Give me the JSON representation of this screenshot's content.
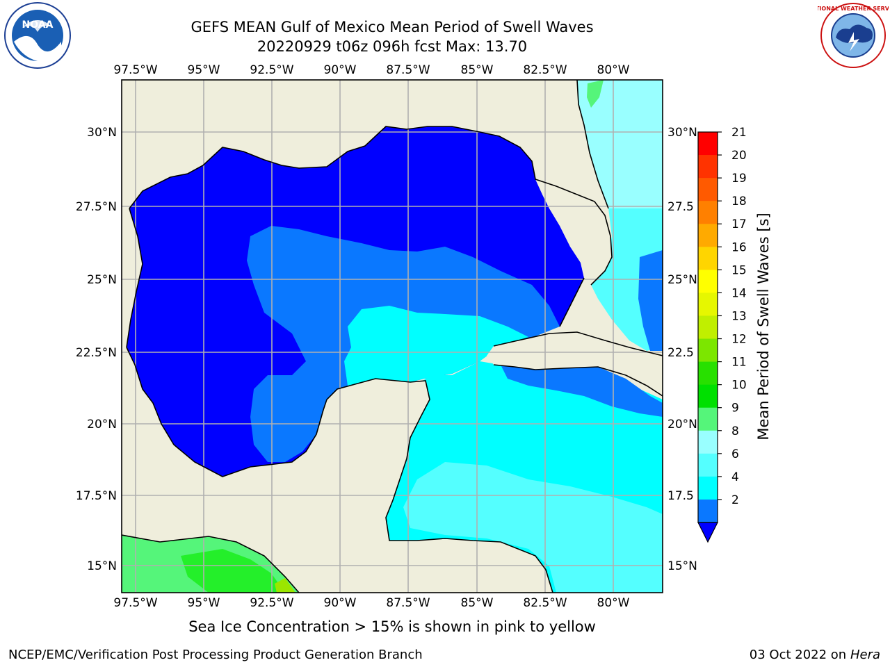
{
  "title": {
    "line1": "GEFS MEAN Gulf of Mexico Mean Period of Swell Waves",
    "line2": "20220929 t06z 096h fcst   Max: 13.70"
  },
  "map": {
    "lon_labels": [
      "97.5°W",
      "95°W",
      "92.5°W",
      "90°W",
      "87.5°W",
      "85°W",
      "82.5°W",
      "80°W"
    ],
    "lat_labels_left": [
      "30°N",
      "27.5°N",
      "25°N",
      "22.5°N",
      "20°N",
      "17.5°N",
      "15°N"
    ],
    "lat_labels_right": [
      "30°N",
      "27.5",
      "25°N",
      "22.5",
      "20°N",
      "17.5",
      "15°N"
    ],
    "colors": {
      "land": "#efeedc",
      "deep_blue": "#0000ff",
      "mid_blue": "#0a78ff",
      "cyan": "#00ffff",
      "light_cyan": "#54ffff",
      "pale_cyan": "#99ffff",
      "green": "#55f57a",
      "bright_green": "#24ef2a",
      "lime": "#9be600",
      "grid": "#b0b0b0"
    }
  },
  "colorbar": {
    "label": "Mean Period of Swell Waves [s]",
    "ticks": [
      "21",
      "20",
      "19",
      "18",
      "17",
      "16",
      "15",
      "14",
      "13",
      "12",
      "11",
      "10",
      "9",
      "8",
      "6",
      "4",
      "2"
    ],
    "colors": [
      "#ff0000",
      "#ff3300",
      "#ff5a00",
      "#ff8000",
      "#ffaa00",
      "#ffd500",
      "#ffff00",
      "#e6f700",
      "#c0ef00",
      "#7ce600",
      "#28e000",
      "#00e000",
      "#55f57a",
      "#99ffff",
      "#54ffff",
      "#00ffff",
      "#0a78ff"
    ],
    "extend_color": "#0000ff"
  },
  "caption": "Sea Ice Concentration > 15% is shown in pink to yellow",
  "footer": {
    "left": "NCEP/EMC/Verification Post Processing Product Generation Branch",
    "right_date": "03 Oct 2022 on ",
    "right_host": "Hera"
  },
  "logos": {
    "noaa_text": "NOAA",
    "nws_text": "NATIONAL WEATHER SERVICE"
  }
}
